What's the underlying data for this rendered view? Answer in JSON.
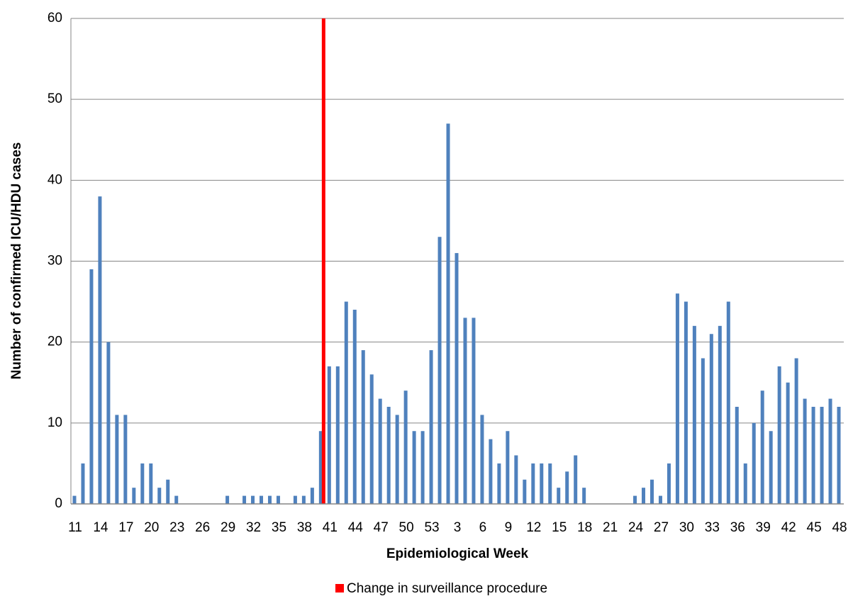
{
  "chart_data": {
    "type": "bar",
    "x_label": "Epidemiological Week",
    "y_label": "Number of confirmed ICU/HDU cases",
    "categories": [
      "11",
      null,
      null,
      "14",
      null,
      null,
      "17",
      null,
      null,
      "20",
      null,
      null,
      "23",
      null,
      null,
      "26",
      null,
      null,
      "29",
      null,
      null,
      "32",
      null,
      null,
      "35",
      null,
      null,
      "38",
      null,
      null,
      "41",
      null,
      null,
      "44",
      null,
      null,
      "47",
      null,
      null,
      "50",
      null,
      null,
      "53",
      null,
      null,
      "3",
      null,
      null,
      "6",
      null,
      null,
      "9",
      null,
      null,
      "12",
      null,
      null,
      "15",
      null,
      null,
      "18",
      null,
      null,
      "21",
      null,
      null,
      "24",
      null,
      null,
      "27",
      null,
      null,
      "30",
      null,
      null,
      "33",
      null,
      null,
      "36",
      null,
      null,
      "39",
      null,
      null,
      "42",
      null,
      null,
      "45",
      null,
      null,
      "48"
    ],
    "series": [
      {
        "color": "#4f81bd",
        "values": [
          1,
          5,
          29,
          38,
          20,
          11,
          11,
          2,
          5,
          5,
          2,
          3,
          1,
          0,
          0,
          0,
          0,
          0,
          1,
          0,
          1,
          1,
          1,
          1,
          1,
          0,
          1,
          1,
          2,
          9,
          17,
          17,
          25,
          24,
          19,
          16,
          13,
          12,
          11,
          14,
          9,
          9,
          19,
          33,
          47,
          31,
          23,
          23,
          11,
          8,
          5,
          9,
          6,
          3,
          5,
          5,
          5,
          2,
          4,
          6,
          2,
          0,
          0,
          0,
          0,
          0,
          1,
          2,
          3,
          1,
          5,
          26,
          25,
          22,
          18,
          21,
          22,
          25,
          12,
          5,
          10,
          14,
          9,
          17,
          15,
          18,
          13,
          12,
          12,
          13,
          12
        ]
      },
      {
        "name": "Change in surveillance procedure",
        "color": "#ff0000",
        "values": [
          null,
          null,
          null,
          null,
          null,
          null,
          null,
          null,
          null,
          null,
          null,
          null,
          null,
          null,
          null,
          null,
          null,
          null,
          null,
          null,
          null,
          null,
          null,
          null,
          null,
          null,
          null,
          null,
          null,
          60,
          null,
          null,
          null,
          null,
          null,
          null,
          null,
          null,
          null,
          null,
          null,
          null,
          null,
          null,
          null,
          null,
          null,
          null,
          null,
          null,
          null,
          null,
          null,
          null,
          null,
          null,
          null,
          null,
          null,
          null,
          null,
          null,
          null,
          null,
          null,
          null,
          null,
          null,
          null,
          null,
          null,
          null,
          null,
          null,
          null,
          null,
          null,
          null,
          null,
          null,
          null,
          null,
          null,
          null,
          null,
          null,
          null,
          null,
          null,
          null,
          null
        ]
      }
    ],
    "ylim": [
      0,
      60
    ],
    "yticks": [
      0,
      10,
      20,
      30,
      40,
      50,
      60
    ],
    "grid": true,
    "legend": "bottom"
  }
}
